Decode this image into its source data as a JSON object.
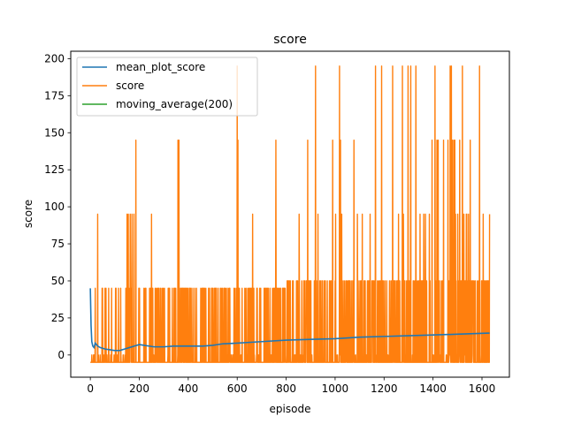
{
  "chart_data": {
    "type": "line",
    "title": "score",
    "xlabel": "episode",
    "ylabel": "score",
    "xlim": [
      -80,
      1712
    ],
    "ylim": [
      -15,
      205
    ],
    "xticks": [
      0,
      200,
      400,
      600,
      800,
      1000,
      1200,
      1400,
      1600
    ],
    "yticks": [
      0,
      25,
      50,
      75,
      100,
      125,
      150,
      175,
      200
    ],
    "grid": false,
    "legend_position": "top-left",
    "episodes": 1632,
    "series": [
      {
        "name": "mean_plot_score",
        "color": "#1f77b4",
        "points": [
          [
            0,
            45
          ],
          [
            3,
            20
          ],
          [
            6,
            9
          ],
          [
            10,
            6
          ],
          [
            15,
            5
          ],
          [
            20,
            8
          ],
          [
            30,
            6
          ],
          [
            40,
            5
          ],
          [
            60,
            4
          ],
          [
            80,
            3.5
          ],
          [
            100,
            3
          ],
          [
            120,
            3
          ],
          [
            140,
            4
          ],
          [
            160,
            5
          ],
          [
            180,
            6
          ],
          [
            200,
            7
          ],
          [
            220,
            6.5
          ],
          [
            260,
            5.5
          ],
          [
            300,
            5.5
          ],
          [
            340,
            6
          ],
          [
            380,
            6
          ],
          [
            420,
            6
          ],
          [
            460,
            6
          ],
          [
            500,
            6.5
          ],
          [
            540,
            7.5
          ],
          [
            600,
            8
          ],
          [
            700,
            9
          ],
          [
            800,
            10
          ],
          [
            900,
            10.5
          ],
          [
            1000,
            11
          ],
          [
            1100,
            12
          ],
          [
            1200,
            12.5
          ],
          [
            1300,
            13
          ],
          [
            1400,
            13.5
          ],
          [
            1500,
            14
          ],
          [
            1631,
            14.8
          ]
        ]
      },
      {
        "name": "score",
        "color": "#ff7f0e",
        "baseline": -5,
        "spike_levels": [
          45,
          95,
          145,
          195
        ],
        "spike_profile": [
          [
            0,
            45,
            0.12,
            0.14,
            0.0
          ],
          [
            150,
            45,
            0.18,
            0.03,
            0.0
          ],
          [
            250,
            45,
            0.22,
            0.05,
            0.0
          ],
          [
            400,
            45,
            0.22,
            0.08,
            0.0
          ],
          [
            600,
            45,
            0.22,
            0.1,
            0.02
          ],
          [
            800,
            50,
            0.2,
            0.12,
            0.03
          ],
          [
            1000,
            50,
            0.2,
            0.13,
            0.04
          ],
          [
            1200,
            50,
            0.2,
            0.14,
            0.05
          ],
          [
            1632,
            50,
            0.2,
            0.14,
            0.05
          ]
        ],
        "spikes": [
          [
            30,
            95
          ],
          [
            150,
            95
          ],
          [
            155,
            95
          ],
          [
            163,
            95
          ],
          [
            170,
            95
          ],
          [
            178,
            95
          ],
          [
            186,
            145
          ],
          [
            250,
            95
          ],
          [
            358,
            145
          ],
          [
            362,
            145
          ],
          [
            600,
            195
          ],
          [
            603,
            145
          ],
          [
            920,
            195
          ],
          [
            1018,
            195
          ],
          [
            1165,
            195
          ],
          [
            1190,
            195
          ],
          [
            1235,
            195
          ],
          [
            1275,
            195
          ],
          [
            1298,
            195
          ],
          [
            1309,
            195
          ],
          [
            1330,
            195
          ],
          [
            1408,
            195
          ],
          [
            1470,
            195
          ],
          [
            1475,
            195
          ],
          [
            1520,
            195
          ],
          [
            1590,
            195
          ]
        ]
      },
      {
        "name": "moving_average(200)",
        "color": "#2ca02c",
        "points": []
      }
    ]
  }
}
